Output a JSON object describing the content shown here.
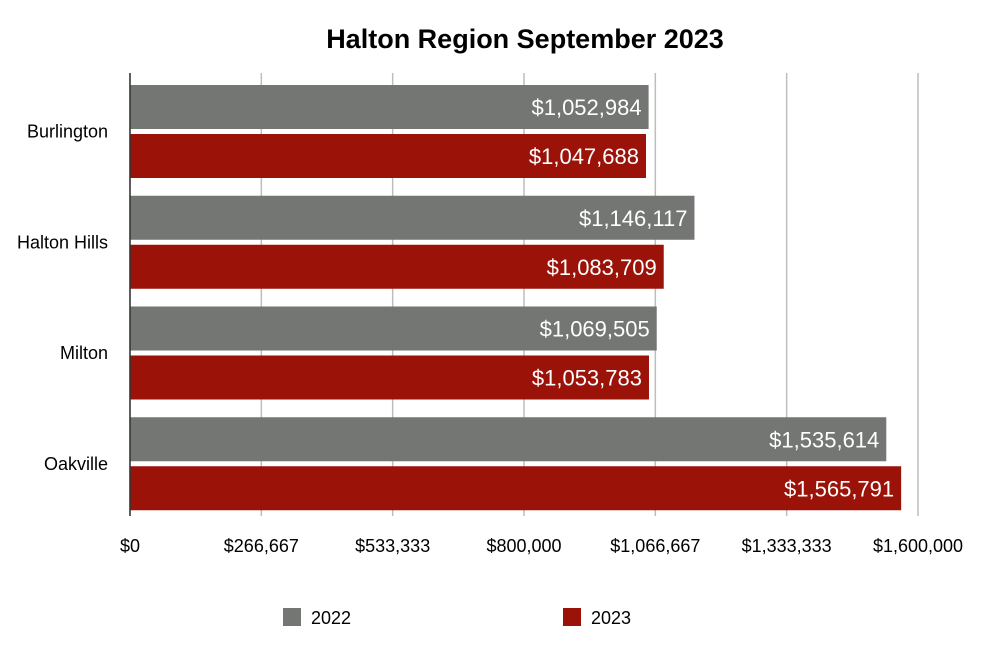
{
  "chart_data": {
    "type": "bar",
    "orientation": "horizontal",
    "title": "Halton Region September 2023",
    "categories": [
      "Burlington",
      "Halton Hills",
      "Milton",
      "Oakville"
    ],
    "series": [
      {
        "name": "2022",
        "color": "#737672",
        "values": [
          1052984,
          1146117,
          1069505,
          1535614
        ],
        "labels": [
          "$1,052,984",
          "$1,146,117",
          "$1,069,505",
          "$1,535,614"
        ]
      },
      {
        "name": "2023",
        "color": "#9b1208",
        "values": [
          1047688,
          1083709,
          1053783,
          1565791
        ],
        "labels": [
          "$1,047,688",
          "$1,083,709",
          "$1,053,783",
          "$1,565,791"
        ]
      }
    ],
    "xlim": [
      0,
      1600000
    ],
    "x_ticks": [
      0,
      266667,
      533333,
      800000,
      1066667,
      1333333,
      1600000
    ],
    "x_tick_labels": [
      "$0",
      "$266,667",
      "$533,333",
      "$800,000",
      "$1,066,667",
      "$1,333,333",
      "$1,600,000"
    ],
    "grid": true,
    "grid_color": "#bdbdbd",
    "legend_position": "bottom"
  }
}
